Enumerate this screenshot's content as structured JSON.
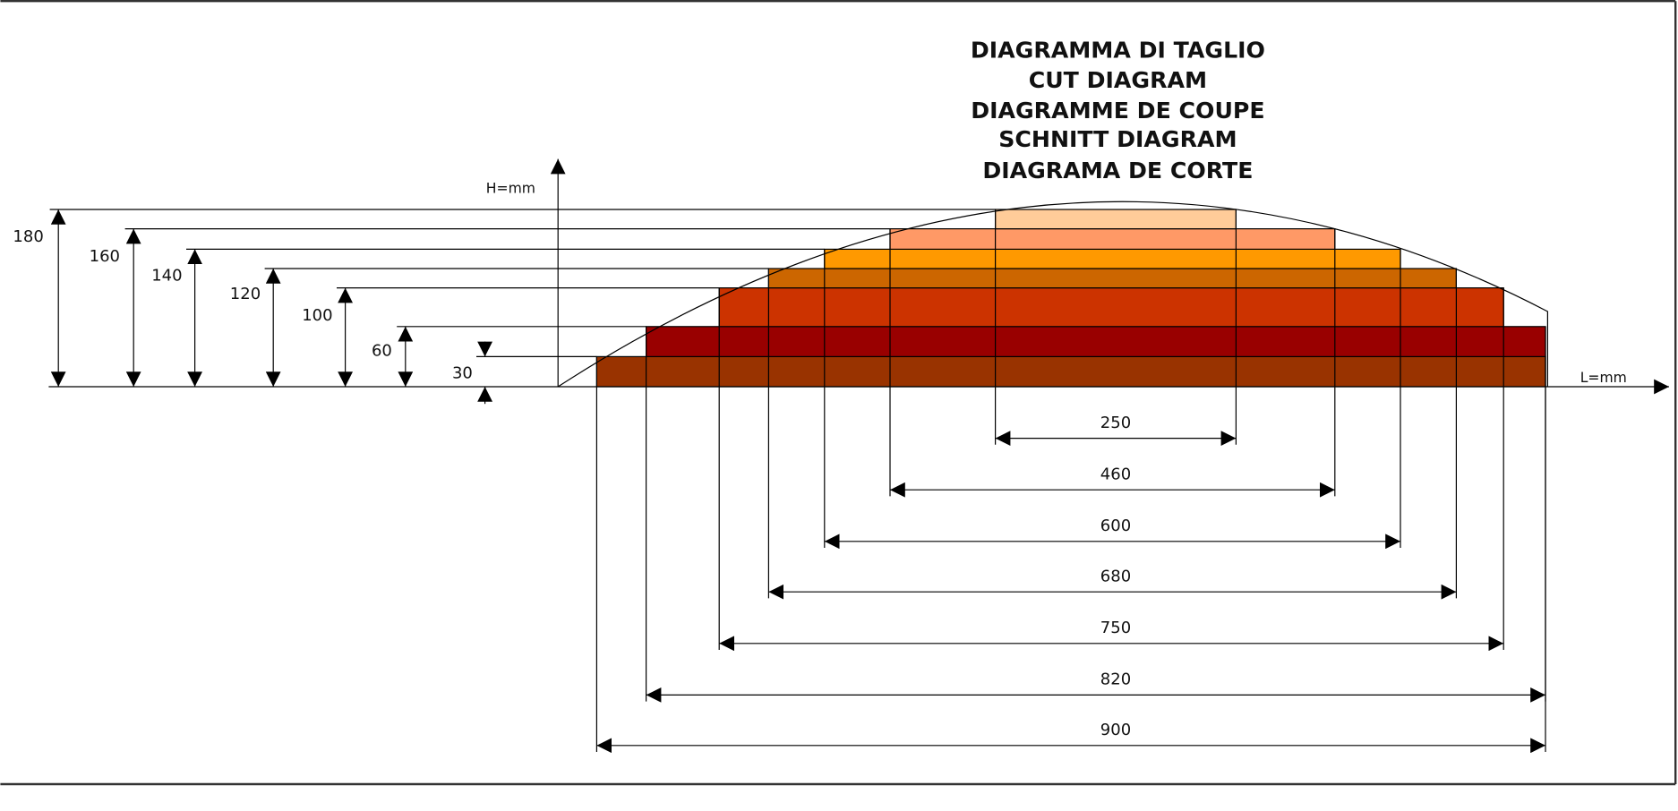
{
  "title_lines": [
    "DIAGRAMMA DI TAGLIO",
    "CUT DIAGRAM",
    "DIAGRAMME DE COUPE",
    "SCHNITT DIAGRAM",
    "DIAGRAMA DE CORTE"
  ],
  "axes": {
    "y_label": "H=mm",
    "x_label": "L=mm"
  },
  "layers": [
    {
      "height": 30,
      "width": 900,
      "color": "#993300"
    },
    {
      "height": 60,
      "width": 820,
      "color": "#990000"
    },
    {
      "height": 100,
      "width": 750,
      "color": "#cc3300"
    },
    {
      "height": 120,
      "width": 680,
      "color": "#cc6600"
    },
    {
      "height": 140,
      "width": 600,
      "color": "#ff9900"
    },
    {
      "height": 160,
      "width": 460,
      "color": "#ff9966"
    },
    {
      "height": 180,
      "width": 250,
      "color": "#ffcc99"
    }
  ]
}
